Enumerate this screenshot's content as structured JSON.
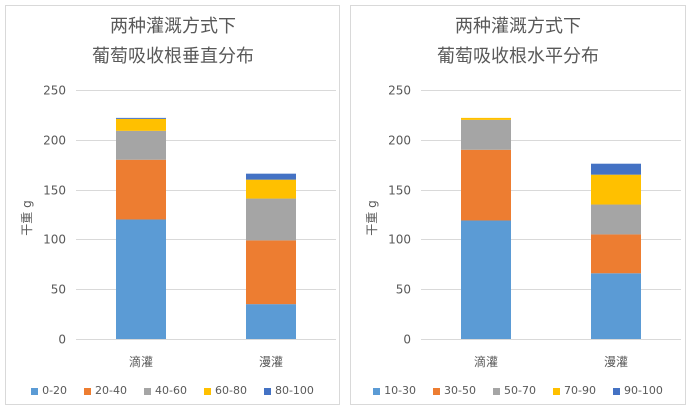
{
  "chart_data": [
    {
      "type": "bar",
      "stacked": true,
      "title": [
        "两种灌溉方式下",
        "葡萄吸收根垂直分布"
      ],
      "ylabel": "干重 g",
      "categories": [
        "滴灌",
        "漫灌"
      ],
      "ylim": [
        0,
        250
      ],
      "yticks": [
        0,
        50,
        100,
        150,
        200,
        250
      ],
      "grid": true,
      "legend": "bottom",
      "series": [
        {
          "name": "0-20",
          "values": [
            120,
            35
          ],
          "color": "#5B9BD5"
        },
        {
          "name": "20-40",
          "values": [
            60,
            64
          ],
          "color": "#ED7D31"
        },
        {
          "name": "40-60",
          "values": [
            29,
            42
          ],
          "color": "#A5A5A5"
        },
        {
          "name": "60-80",
          "values": [
            12,
            19
          ],
          "color": "#FFC000"
        },
        {
          "name": "80-100",
          "values": [
            1,
            6
          ],
          "color": "#4472C4"
        }
      ]
    },
    {
      "type": "bar",
      "stacked": true,
      "title": [
        "两种灌溉方式下",
        "葡萄吸收根水平分布"
      ],
      "ylabel": "干重 g",
      "categories": [
        "滴灌",
        "漫灌"
      ],
      "ylim": [
        0,
        250
      ],
      "yticks": [
        0,
        50,
        100,
        150,
        200,
        250
      ],
      "grid": true,
      "legend": "bottom",
      "series": [
        {
          "name": "10-30",
          "values": [
            119,
            66
          ],
          "color": "#5B9BD5"
        },
        {
          "name": "30-50",
          "values": [
            71,
            39
          ],
          "color": "#ED7D31"
        },
        {
          "name": "50-70",
          "values": [
            30,
            30
          ],
          "color": "#A5A5A5"
        },
        {
          "name": "70-90",
          "values": [
            2,
            30
          ],
          "color": "#FFC000"
        },
        {
          "name": "90-100",
          "values": [
            0,
            11
          ],
          "color": "#4472C4"
        }
      ]
    }
  ]
}
